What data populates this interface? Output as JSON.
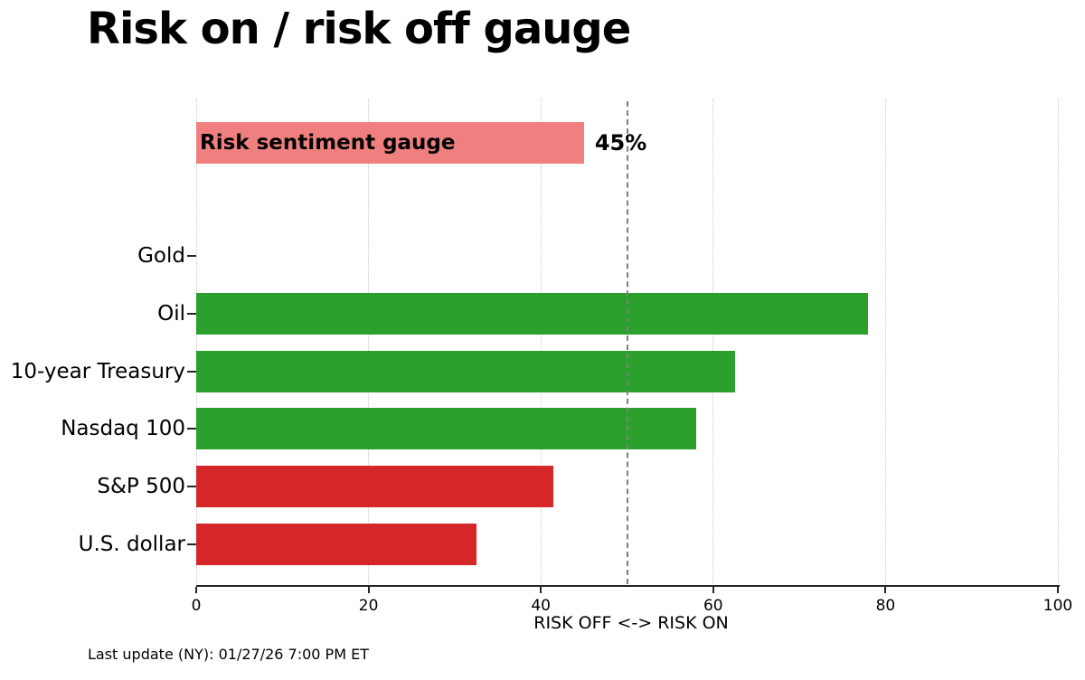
{
  "page": {
    "title": "Risk on / risk off gauge",
    "footer": "Last update (NY): 01/27/26 7:00 PM ET"
  },
  "chart_data": {
    "type": "bar",
    "orientation": "horizontal",
    "title": "Risk on / risk off gauge",
    "xlabel": "RISK OFF <-> RISK ON",
    "xlim": [
      0,
      100
    ],
    "xticks": [
      0,
      20,
      40,
      60,
      80,
      100
    ],
    "grid": "dotted-vertical-gridlines",
    "legend": "none",
    "reference_line": {
      "value": 50,
      "style": "dashed",
      "color": "#7f7f7f"
    },
    "gauge_bar": {
      "label": "Risk sentiment gauge",
      "value": 45,
      "value_label": "45%",
      "color": "#f08080"
    },
    "categories": [
      "Gold",
      "Oil",
      "10-year Treasury",
      "Nasdaq 100",
      "S&P 500",
      "U.S. dollar"
    ],
    "values": [
      0,
      78,
      62.5,
      58,
      41.5,
      32.5
    ],
    "bar_colors": [
      "#2ca02c",
      "#2ca02c",
      "#2ca02c",
      "#2ca02c",
      "#d62728",
      "#d62728"
    ],
    "colors": {
      "risk_on_green": "#2ca02c",
      "risk_off_red": "#d62728",
      "gauge_pink": "#f08080",
      "axis": "#262626",
      "grid": "#c9c9c9",
      "reference": "#7f7f7f"
    }
  }
}
